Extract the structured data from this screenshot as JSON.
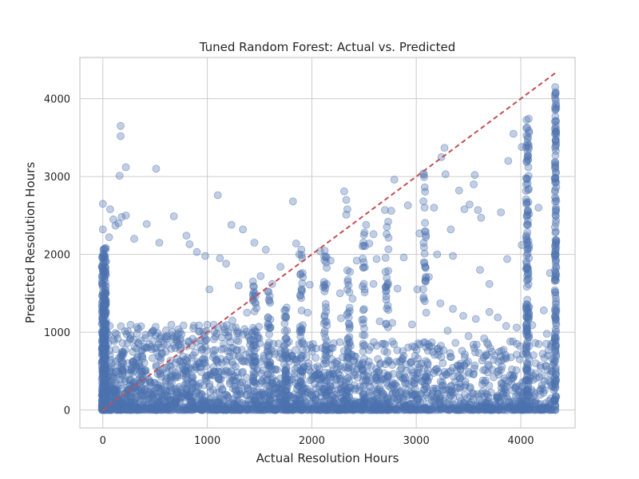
{
  "chart_data": {
    "type": "scatter",
    "title": "Tuned Random Forest: Actual vs. Predicted",
    "xlabel": "Actual Resolution Hours",
    "ylabel": "Predicted Resolution Hours",
    "xlim": [
      -220,
      4520
    ],
    "ylim": [
      -230,
      4530
    ],
    "xticks": [
      0,
      1000,
      2000,
      3000,
      4000
    ],
    "yticks": [
      0,
      1000,
      2000,
      3000,
      4000
    ],
    "grid": true,
    "point_color": "#4c72b0",
    "point_alpha": 0.35,
    "reference_line": {
      "from": [
        0,
        0
      ],
      "to": [
        4330,
        4330
      ],
      "color": "#c44e52",
      "style": "dashed"
    },
    "series": [
      {
        "values": [
          [
            0,
            2650
          ],
          [
            70,
            2580
          ],
          [
            0,
            2320
          ],
          [
            60,
            2220
          ],
          [
            100,
            2450
          ],
          [
            120,
            2370
          ],
          [
            150,
            2400
          ],
          [
            180,
            2480
          ],
          [
            220,
            2500
          ],
          [
            300,
            2200
          ],
          [
            420,
            2390
          ],
          [
            540,
            2150
          ],
          [
            680,
            2490
          ],
          [
            800,
            2240
          ],
          [
            830,
            2130
          ],
          [
            170,
            3650
          ],
          [
            170,
            3520
          ],
          [
            160,
            3010
          ],
          [
            220,
            3120
          ],
          [
            510,
            3100
          ],
          [
            1100,
            2760
          ],
          [
            1230,
            2380
          ],
          [
            1340,
            2320
          ],
          [
            1820,
            2680
          ],
          [
            1850,
            2140
          ],
          [
            1880,
            2000
          ],
          [
            1900,
            2060
          ],
          [
            2310,
            2810
          ],
          [
            2330,
            2700
          ],
          [
            2340,
            2580
          ],
          [
            2330,
            2510
          ],
          [
            2520,
            2380
          ],
          [
            2550,
            2140
          ],
          [
            2590,
            2260
          ],
          [
            2700,
            2570
          ],
          [
            2760,
            2560
          ],
          [
            2790,
            2960
          ],
          [
            2920,
            2630
          ],
          [
            3030,
            2270
          ],
          [
            3080,
            2600
          ],
          [
            3080,
            2010
          ],
          [
            3170,
            2600
          ],
          [
            3200,
            2000
          ],
          [
            3240,
            3250
          ],
          [
            3270,
            3370
          ],
          [
            3280,
            3030
          ],
          [
            3330,
            2320
          ],
          [
            3350,
            1980
          ],
          [
            3410,
            2820
          ],
          [
            3460,
            2580
          ],
          [
            3510,
            2640
          ],
          [
            3550,
            2900
          ],
          [
            3560,
            3020
          ],
          [
            3590,
            2570
          ],
          [
            3610,
            1800
          ],
          [
            3620,
            2470
          ],
          [
            3700,
            1620
          ],
          [
            3810,
            2540
          ],
          [
            3870,
            1940
          ],
          [
            3880,
            3200
          ],
          [
            3930,
            3550
          ],
          [
            4010,
            3380
          ],
          [
            4170,
            2600
          ],
          [
            4280,
            1760
          ],
          [
            4330,
            4150
          ],
          [
            4010,
            2120
          ],
          [
            900,
            2030
          ],
          [
            980,
            1980
          ],
          [
            1020,
            1550
          ],
          [
            1120,
            1950
          ],
          [
            1180,
            1880
          ],
          [
            1450,
            2150
          ],
          [
            1560,
            2060
          ],
          [
            2080,
            2040
          ],
          [
            2180,
            1920
          ],
          [
            1700,
            1840
          ],
          [
            2430,
            1920
          ],
          [
            2620,
            1940
          ],
          [
            2880,
            1960
          ],
          [
            1300,
            1600
          ],
          [
            1510,
            1720
          ],
          [
            1620,
            1620
          ],
          [
            1980,
            1610
          ],
          [
            2110,
            1580
          ],
          [
            2270,
            1500
          ],
          [
            2390,
            1430
          ],
          [
            2590,
            1620
          ],
          [
            2820,
            1560
          ],
          [
            3010,
            1550
          ],
          [
            3120,
            1710
          ],
          [
            3230,
            1370
          ],
          [
            3350,
            1300
          ],
          [
            3450,
            1210
          ],
          [
            3570,
            1170
          ],
          [
            3700,
            1260
          ],
          [
            3780,
            1190
          ],
          [
            3860,
            1080
          ],
          [
            3960,
            1060
          ],
          [
            4110,
            1090
          ],
          [
            4220,
            1280
          ],
          [
            4250,
            980
          ],
          [
            1380,
            1250
          ],
          [
            1240,
            1150
          ],
          [
            1470,
            1310
          ],
          [
            1750,
            1280
          ],
          [
            1960,
            1250
          ],
          [
            2120,
            1200
          ],
          [
            2280,
            1180
          ],
          [
            2480,
            1160
          ],
          [
            2650,
            1140
          ],
          [
            2770,
            1120
          ],
          [
            2960,
            1100
          ],
          [
            3300,
            1020
          ],
          [
            3500,
            950
          ],
          [
            3650,
            920
          ],
          [
            3900,
            880
          ],
          [
            4140,
            860
          ],
          [
            4260,
            700
          ],
          [
            4300,
            500
          ],
          [
            4310,
            300
          ],
          [
            4290,
            150
          ],
          [
            4180,
            420
          ],
          [
            3990,
            650
          ],
          [
            3750,
            700
          ],
          [
            3480,
            600
          ],
          [
            3240,
            680
          ],
          [
            3030,
            550
          ],
          [
            2840,
            620
          ],
          [
            2640,
            500
          ],
          [
            2450,
            580
          ],
          [
            2250,
            470
          ],
          [
            2030,
            540
          ],
          [
            1830,
            430
          ],
          [
            1650,
            520
          ],
          [
            1440,
            410
          ],
          [
            1240,
            380
          ],
          [
            1040,
            450
          ],
          [
            860,
            360
          ],
          [
            660,
            420
          ],
          [
            460,
            300
          ],
          [
            260,
            380
          ],
          [
            120,
            250
          ],
          [
            60,
            120
          ],
          [
            30,
            60
          ],
          [
            0,
            0
          ]
        ]
      }
    ]
  }
}
